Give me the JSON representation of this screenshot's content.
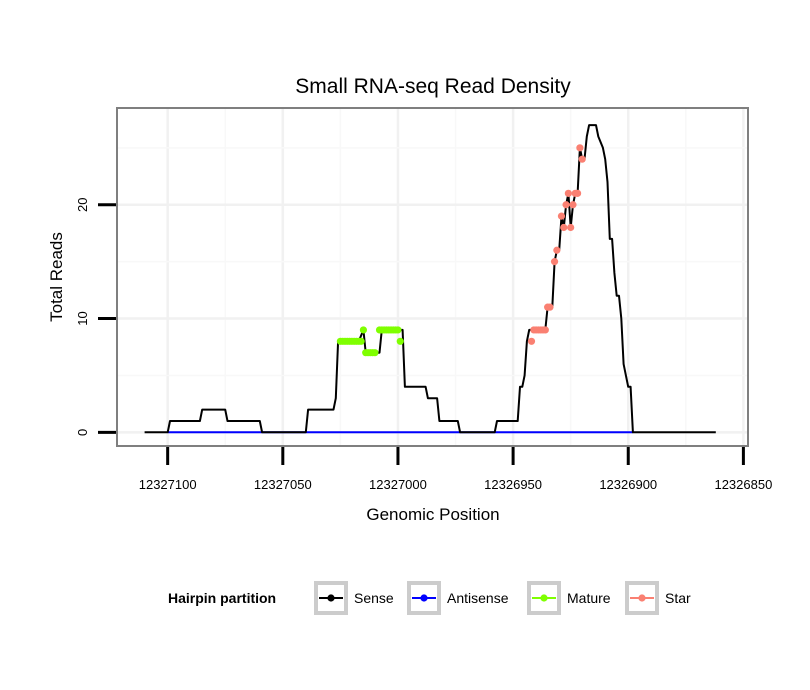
{
  "chart_data": {
    "type": "line",
    "title": "Small RNA-seq Read Density",
    "xlabel": "Genomic Position",
    "ylabel": "Total Reads",
    "xlim": [
      12327122,
      12326848
    ],
    "ylim": [
      -1.2,
      28.5
    ],
    "x_reversed": true,
    "grid": true,
    "x_ticks": [
      12327100,
      12327050,
      12327000,
      12326950,
      12326900,
      12326850
    ],
    "x_tick_labels": [
      "12327100",
      "12327050",
      "12327000",
      "12326950",
      "12326900",
      "12326850"
    ],
    "y_ticks": [
      0,
      10,
      20
    ],
    "y_tick_labels": [
      "0",
      "10",
      "20"
    ],
    "legend": {
      "title": "Hairpin partition",
      "position": "bottom",
      "entries": [
        {
          "name": "Sense",
          "color": "#000000"
        },
        {
          "name": "Antisense",
          "color": "#0000ff"
        },
        {
          "name": "Mature",
          "color": "#7fff00"
        },
        {
          "name": "Star",
          "color": "#fa8072"
        }
      ]
    },
    "series": [
      {
        "name": "Sense",
        "color": "#000000",
        "kind": "step-line",
        "points": [
          [
            12327110,
            0
          ],
          [
            12327100,
            0
          ],
          [
            12327099,
            1
          ],
          [
            12327086,
            1
          ],
          [
            12327085,
            2
          ],
          [
            12327075,
            2
          ],
          [
            12327074,
            1
          ],
          [
            12327060,
            1
          ],
          [
            12327059,
            0
          ],
          [
            12327040,
            0
          ],
          [
            12327039,
            2
          ],
          [
            12327028,
            2
          ],
          [
            12327027,
            3
          ],
          [
            12327026,
            8
          ],
          [
            12327017,
            8
          ],
          [
            12327015,
            9
          ],
          [
            12327014,
            7
          ],
          [
            12327008,
            7
          ],
          [
            12327007,
            9
          ],
          [
            12326998,
            9
          ],
          [
            12326997,
            4
          ],
          [
            12326988,
            4
          ],
          [
            12326987,
            3
          ],
          [
            12326983,
            3
          ],
          [
            12326982,
            1
          ],
          [
            12326974,
            1
          ],
          [
            12326973,
            0
          ],
          [
            12326958,
            0
          ],
          [
            12326957,
            1
          ],
          [
            12326948,
            1
          ],
          [
            12326947,
            4
          ],
          [
            12326946,
            4
          ],
          [
            12326945,
            5
          ],
          [
            12326944,
            8
          ],
          [
            12326943,
            9
          ],
          [
            12326936,
            9
          ],
          [
            12326935,
            11
          ],
          [
            12326933,
            11
          ],
          [
            12326932,
            15
          ],
          [
            12326931,
            16
          ],
          [
            12326930,
            16
          ],
          [
            12326929,
            19
          ],
          [
            12326928,
            18
          ],
          [
            12326927,
            20
          ],
          [
            12326926,
            21
          ],
          [
            12326925,
            18
          ],
          [
            12326924,
            20
          ],
          [
            12326923,
            21
          ],
          [
            12326922,
            21
          ],
          [
            12326921,
            25
          ],
          [
            12326920,
            24
          ],
          [
            12326919,
            24
          ],
          [
            12326918,
            26
          ],
          [
            12326917,
            27
          ],
          [
            12326914,
            27
          ],
          [
            12326913,
            26
          ],
          [
            12326911,
            25
          ],
          [
            12326910,
            24
          ],
          [
            12326909,
            22
          ],
          [
            12326908,
            17
          ],
          [
            12326907,
            17
          ],
          [
            12326906,
            14
          ],
          [
            12326905,
            12
          ],
          [
            12326904,
            12
          ],
          [
            12326903,
            10
          ],
          [
            12326902,
            6
          ],
          [
            12326901,
            5
          ],
          [
            12326900,
            4
          ],
          [
            12326899,
            4
          ],
          [
            12326898,
            0
          ],
          [
            12326862,
            0
          ]
        ]
      },
      {
        "name": "Antisense",
        "color": "#0000ff",
        "kind": "line",
        "points": [
          [
            12327100,
            0
          ],
          [
            12326898,
            0
          ]
        ]
      },
      {
        "name": "Mature",
        "color": "#7fff00",
        "kind": "points",
        "points": [
          [
            12327025,
            8
          ],
          [
            12327024,
            8
          ],
          [
            12327023,
            8
          ],
          [
            12327022,
            8
          ],
          [
            12327021,
            8
          ],
          [
            12327020,
            8
          ],
          [
            12327019,
            8
          ],
          [
            12327018,
            8
          ],
          [
            12327017,
            8
          ],
          [
            12327016,
            8
          ],
          [
            12327015,
            9
          ],
          [
            12327014,
            7
          ],
          [
            12327013,
            7
          ],
          [
            12327012,
            7
          ],
          [
            12327011,
            7
          ],
          [
            12327010,
            7
          ],
          [
            12327008,
            9
          ],
          [
            12327007,
            9
          ],
          [
            12327006,
            9
          ],
          [
            12327005,
            9
          ],
          [
            12327004,
            9
          ],
          [
            12327003,
            9
          ],
          [
            12327002,
            9
          ],
          [
            12327001,
            9
          ],
          [
            12327000,
            9
          ],
          [
            12326999,
            8
          ]
        ]
      },
      {
        "name": "Star",
        "color": "#fa8072",
        "kind": "points",
        "points": [
          [
            12326942,
            8
          ],
          [
            12326941,
            9
          ],
          [
            12326940,
            9
          ],
          [
            12326939,
            9
          ],
          [
            12326938,
            9
          ],
          [
            12326937,
            9
          ],
          [
            12326936,
            9
          ],
          [
            12326935,
            11
          ],
          [
            12326934,
            11
          ],
          [
            12326932,
            15
          ],
          [
            12326931,
            16
          ],
          [
            12326929,
            19
          ],
          [
            12326928,
            18
          ],
          [
            12326927,
            20
          ],
          [
            12326926,
            21
          ],
          [
            12326925,
            18
          ],
          [
            12326924,
            20
          ],
          [
            12326923,
            21
          ],
          [
            12326922,
            21
          ],
          [
            12326921,
            25
          ],
          [
            12326920,
            24
          ]
        ]
      }
    ]
  }
}
